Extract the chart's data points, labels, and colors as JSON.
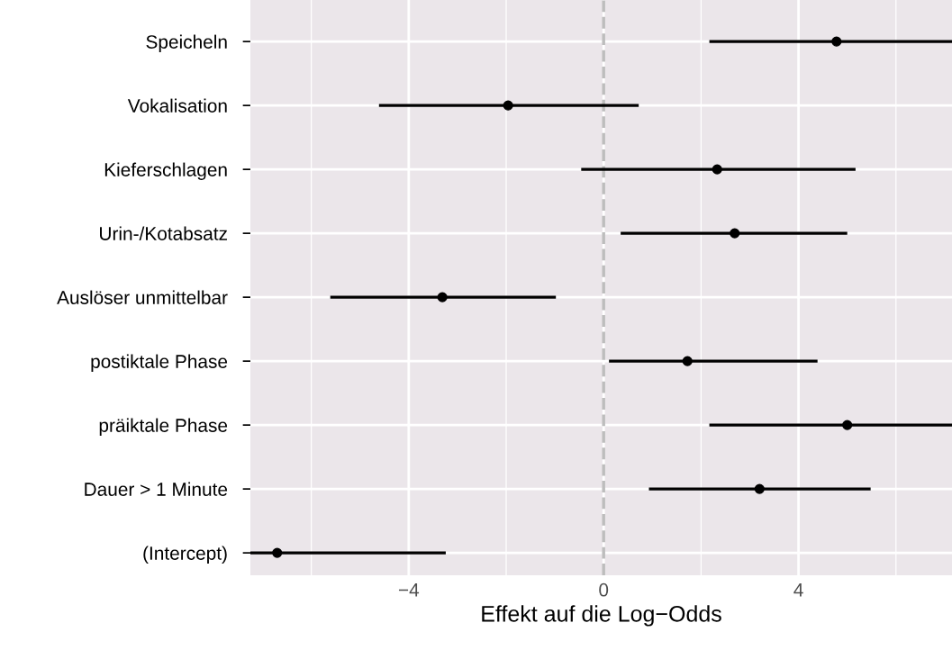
{
  "chart_data": {
    "type": "scatter",
    "orientation": "horizontal",
    "categories": [
      "Speicheln",
      "Vokalisation",
      "Kieferschlagen",
      "Urin-/Kotabsatz",
      "Auslöser unmittelbar",
      "postiktale Phase",
      "präiktale Phase",
      "Dauer > 1 Minute",
      "(Intercept)"
    ],
    "values": [
      4.78,
      -1.96,
      2.33,
      2.69,
      -3.31,
      1.72,
      5.0,
      3.2,
      -6.7
    ],
    "errors": [
      [
        2.17,
        7.15
      ],
      [
        -4.61,
        0.72
      ],
      [
        -0.46,
        5.17
      ],
      [
        0.35,
        5.0
      ],
      [
        -5.61,
        -0.98
      ],
      [
        0.11,
        4.39
      ],
      [
        2.17,
        7.15
      ],
      [
        0.93,
        5.48
      ],
      [
        -7.25,
        -3.24
      ]
    ],
    "color": "#000000",
    "xlabel": "Effekt auf die Log−Odds",
    "xlim": [
      -7.25,
      7.15
    ],
    "xticks": [
      {
        "value": -6,
        "label": null
      },
      "−4",
      {
        "value": -2,
        "label": null
      },
      0,
      {
        "value": 2,
        "label": null
      },
      4,
      {
        "value": 6,
        "label": null
      }
    ],
    "ref_lines": [
      {
        "axis": "x",
        "value": 0,
        "color": "#bdbdbd",
        "line_style": "dashed"
      }
    ],
    "grid": true,
    "marker": "circle"
  }
}
